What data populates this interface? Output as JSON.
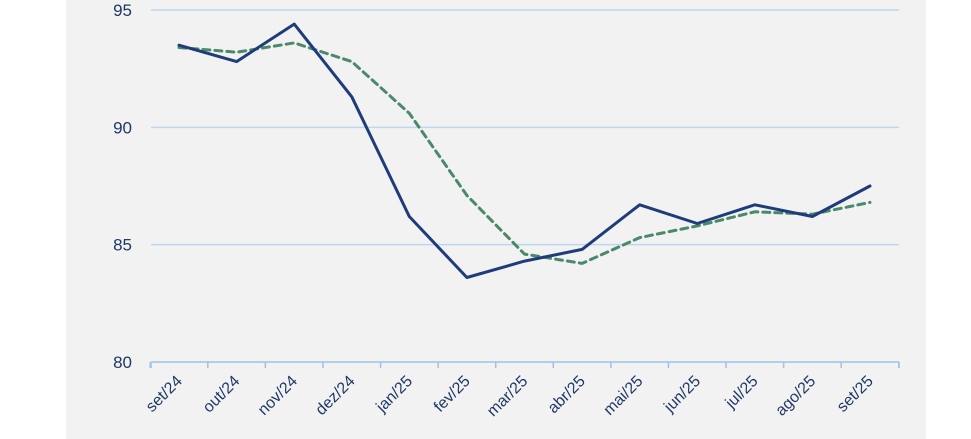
{
  "chart_data": {
    "type": "line",
    "categories": [
      "set/24",
      "out/24",
      "nov/24",
      "dez/24",
      "jan/25",
      "fev/25",
      "mar/25",
      "abr/25",
      "mai/25",
      "jun/25",
      "jul/25",
      "ago/25",
      "set/25"
    ],
    "series": [
      {
        "values": [
          93.5,
          92.8,
          94.4,
          91.3,
          86.2,
          83.6,
          84.3,
          84.8,
          86.7,
          85.9,
          86.7,
          86.2,
          87.5
        ],
        "color": "#1f3c7a",
        "style": "solid"
      },
      {
        "values": [
          93.4,
          93.2,
          93.6,
          92.8,
          90.6,
          87.1,
          84.6,
          84.2,
          85.3,
          85.8,
          86.4,
          86.3,
          86.8
        ],
        "color": "#4a8a6a",
        "style": "dashed"
      }
    ],
    "yticks": [
      "80",
      "85",
      "90",
      "95"
    ],
    "ylim": [
      80,
      95
    ],
    "grid": true,
    "legend": "none"
  }
}
